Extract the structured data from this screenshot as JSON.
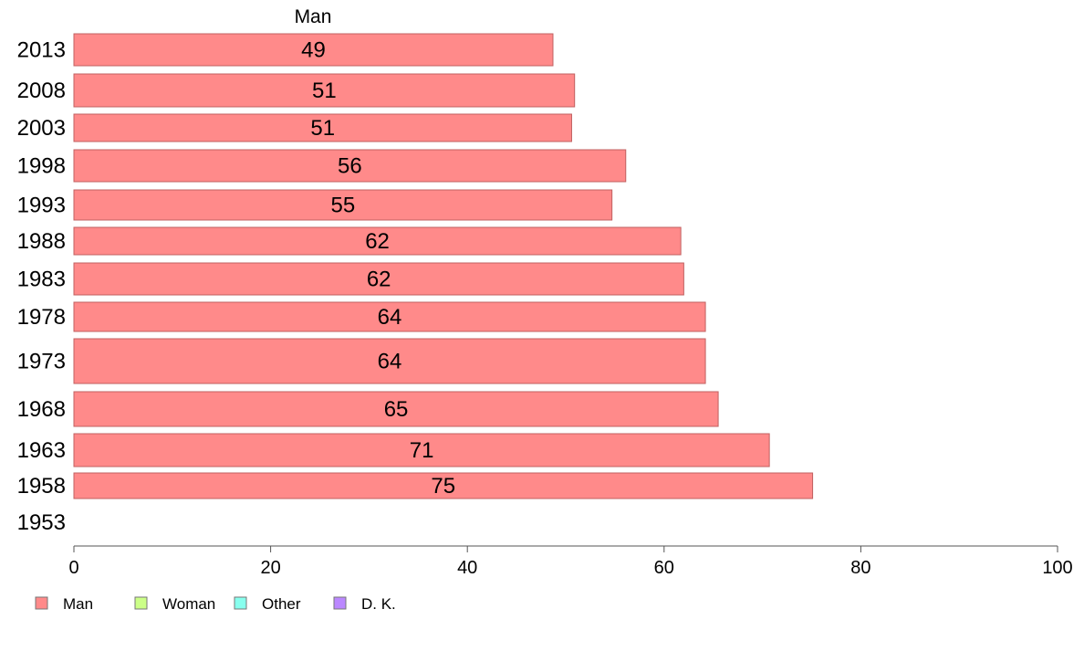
{
  "chart_data": {
    "type": "bar",
    "orientation": "horizontal",
    "series_title": "Man",
    "categories": [
      "2013",
      "2008",
      "2003",
      "1998",
      "1993",
      "1988",
      "1983",
      "1978",
      "1973",
      "1968",
      "1963",
      "1958",
      "1953"
    ],
    "series": [
      {
        "name": "Man",
        "color": "#ff8a8a",
        "values": [
          48.7,
          50.9,
          50.6,
          56.1,
          54.7,
          61.7,
          62.0,
          64.2,
          64.2,
          65.5,
          70.7,
          75.1,
          null
        ],
        "labels": [
          "49",
          "51",
          "51",
          "56",
          "55",
          "62",
          "62",
          "64",
          "64",
          "65",
          "71",
          "75",
          ""
        ]
      }
    ],
    "xlim": [
      0,
      100
    ],
    "xticks": [
      0,
      20,
      40,
      60,
      80,
      100
    ],
    "legend_placement": "bottom-left",
    "legend": [
      {
        "name": "Man",
        "color": "#ff8a8a"
      },
      {
        "name": "Woman",
        "color": "#ccff88"
      },
      {
        "name": "Other",
        "color": "#88ffee"
      },
      {
        "name": "D. K.",
        "color": "#bb88ff"
      }
    ]
  }
}
